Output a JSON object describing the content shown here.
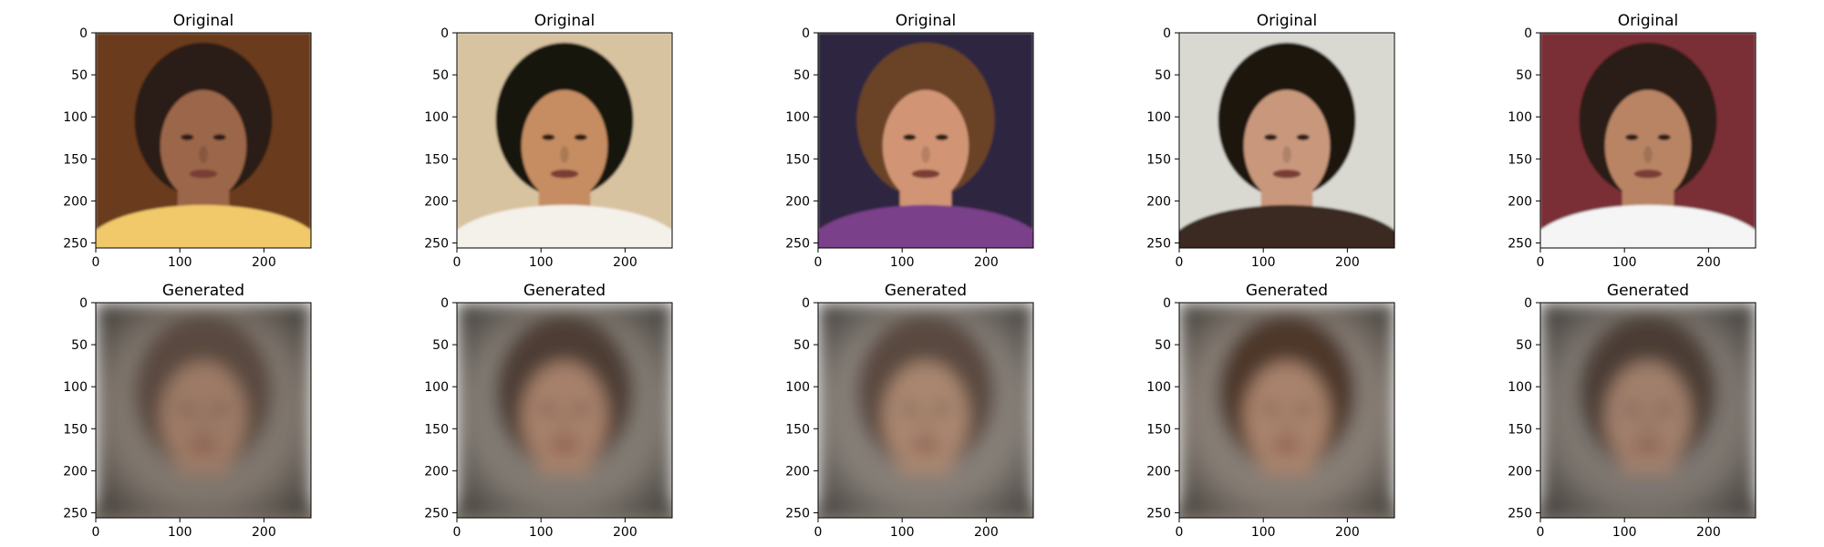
{
  "figure": {
    "rows": [
      {
        "title": "Original",
        "panels": [
          {
            "skin": "#9b6648",
            "hair": "#2a1f16",
            "background": "#6b3b1a",
            "accent": "#f2c96a"
          },
          {
            "skin": "#c68d62",
            "hair": "#17120e",
            "background": "#d8c3a0",
            "accent": "#f4f0ea"
          },
          {
            "skin": "#d19574",
            "hair": "#6a4328",
            "background": "#2e2540",
            "accent": "#7a3f8a"
          },
          {
            "skin": "#c9987c",
            "hair": "#1c1410",
            "background": "#d9d8d1",
            "accent": "#3a2a22"
          },
          {
            "skin": "#b98464",
            "hair": "#2a1d15",
            "background": "#7a2f35",
            "accent": "#f5f5f5"
          }
        ]
      },
      {
        "title": "Generated",
        "panels": [
          {
            "skin": "#9c7a66",
            "hair": "#5a4a40",
            "background": "#7f766d",
            "accent": "#2e2622"
          },
          {
            "skin": "#a6806a",
            "hair": "#4e3e34",
            "background": "#817a72",
            "accent": "#e9e1d8"
          },
          {
            "skin": "#a98670",
            "hair": "#5a4a3f",
            "background": "#857e77",
            "accent": "#d7c9bb"
          },
          {
            "skin": "#a8826c",
            "hair": "#4e3729",
            "background": "#867d74",
            "accent": "#8a5c52"
          },
          {
            "skin": "#a07f6c",
            "hair": "#4c3e35",
            "background": "#7d766f",
            "accent": "#9a8a7c"
          }
        ]
      }
    ],
    "axes": {
      "x_ticks": [
        0,
        100,
        200
      ],
      "y_ticks": [
        0,
        50,
        100,
        150,
        200,
        250
      ],
      "range": [
        0,
        256
      ]
    }
  }
}
